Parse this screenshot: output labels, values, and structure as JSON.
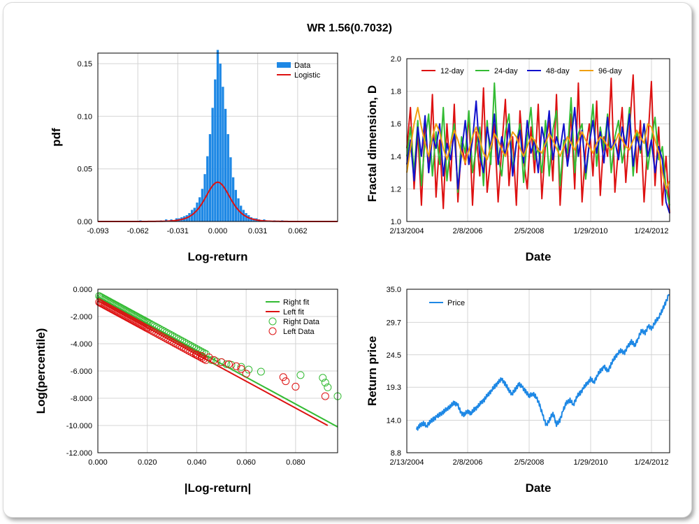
{
  "title": "WR 1.56(0.7032)",
  "chart_data": [
    {
      "id": "pdf",
      "type": "bar",
      "xlabel": "Log-return",
      "ylabel": "pdf",
      "xlim": [
        -0.093,
        0.093
      ],
      "ylim": [
        0,
        0.16
      ],
      "xticks": [
        -0.093,
        -0.062,
        -0.031,
        0.0,
        0.031,
        0.062
      ],
      "xtick_labels": [
        "-0.093",
        "-0.062",
        "-0.031",
        "0.000",
        "0.031",
        "0.062"
      ],
      "yticks": [
        0,
        0.05,
        0.1,
        0.15
      ],
      "ytick_labels": [
        "0.00",
        "0.05",
        "0.10",
        "0.15"
      ],
      "legend": [
        "Data",
        "Logistic"
      ],
      "legend_position": "top-right",
      "series_colors": {
        "Data": "#1e88e5",
        "Logistic": "#dd1111"
      },
      "bin_centers": [
        -0.06,
        -0.044,
        -0.04,
        -0.036,
        -0.032,
        -0.03,
        -0.028,
        -0.026,
        -0.024,
        -0.022,
        -0.02,
        -0.018,
        -0.016,
        -0.014,
        -0.012,
        -0.01,
        -0.008,
        -0.006,
        -0.004,
        -0.002,
        0.0,
        0.002,
        0.004,
        0.006,
        0.008,
        0.01,
        0.012,
        0.014,
        0.016,
        0.018,
        0.02,
        0.022,
        0.024,
        0.026,
        0.028,
        0.03,
        0.032,
        0.036,
        0.04,
        0.044,
        0.05
      ],
      "bin_values": [
        0.001,
        0.001,
        0.002,
        0.002,
        0.003,
        0.003,
        0.004,
        0.005,
        0.006,
        0.008,
        0.011,
        0.013,
        0.018,
        0.023,
        0.031,
        0.045,
        0.062,
        0.083,
        0.108,
        0.135,
        0.163,
        0.15,
        0.128,
        0.107,
        0.083,
        0.061,
        0.042,
        0.03,
        0.022,
        0.015,
        0.011,
        0.008,
        0.006,
        0.004,
        0.003,
        0.003,
        0.002,
        0.002,
        0.001,
        0.001,
        0.001
      ],
      "logistic_scale": 0.0065,
      "logistic_center": 0.0
    },
    {
      "id": "fractal",
      "type": "line",
      "xlabel": "Date",
      "ylabel": "Fractal dimension, D",
      "ylim": [
        1.0,
        2.0
      ],
      "yticks": [
        1.0,
        1.2,
        1.4,
        1.6,
        1.8,
        2.0
      ],
      "ytick_labels": [
        "1.0",
        "1.2",
        "1.4",
        "1.6",
        "1.8",
        "2.0"
      ],
      "xtick_labels": [
        "2/13/2004",
        "2/8/2006",
        "2/5/2008",
        "1/29/2010",
        "1/24/2012"
      ],
      "legend_position": "top",
      "series": [
        {
          "name": "12-day",
          "color": "#dd1111",
          "values": [
            1.45,
            1.7,
            1.2,
            1.55,
            1.1,
            1.62,
            1.3,
            1.78,
            1.15,
            1.5,
            1.08,
            1.6,
            1.25,
            1.72,
            1.12,
            1.48,
            1.35,
            1.66,
            1.1,
            1.55,
            1.28,
            1.82,
            1.18,
            1.4,
            1.6,
            1.12,
            1.45,
            1.75,
            1.22,
            1.52,
            1.1,
            1.68,
            1.38,
            1.2,
            1.58,
            1.3,
            1.72,
            1.14,
            1.48,
            1.62,
            1.25,
            1.78,
            1.1,
            1.5,
            1.36,
            1.66,
            1.2,
            1.85,
            1.12,
            1.44,
            1.6,
            1.28,
            1.74,
            1.16,
            1.52,
            1.4,
            1.88,
            1.18,
            1.46,
            1.7,
            1.24,
            1.56,
            1.9,
            1.3,
            1.62,
            1.12,
            1.48,
            1.86,
            1.22,
            1.58,
            1.1,
            1.4,
            1.05
          ]
        },
        {
          "name": "24-day",
          "color": "#33bb33",
          "values": [
            1.4,
            1.58,
            1.3,
            1.62,
            1.22,
            1.5,
            1.66,
            1.28,
            1.55,
            1.35,
            1.7,
            1.25,
            1.48,
            1.6,
            1.18,
            1.52,
            1.42,
            1.68,
            1.3,
            1.45,
            1.58,
            1.22,
            1.62,
            1.35,
            1.85,
            1.4,
            1.28,
            1.55,
            1.66,
            1.32,
            1.48,
            1.6,
            1.24,
            1.52,
            1.7,
            1.38,
            1.45,
            1.3,
            1.62,
            1.28,
            1.56,
            1.68,
            1.22,
            1.5,
            1.42,
            1.76,
            1.3,
            1.54,
            1.6,
            1.26,
            1.48,
            1.72,
            1.34,
            1.58,
            1.44,
            1.66,
            1.3,
            1.52,
            1.62,
            1.36,
            1.48,
            1.7,
            1.28,
            1.56,
            1.42,
            1.6,
            1.32,
            1.5,
            1.64,
            1.38,
            1.46,
            1.2,
            1.1
          ]
        },
        {
          "name": "48-day",
          "color": "#1111cc",
          "values": [
            1.35,
            1.5,
            1.25,
            1.58,
            1.4,
            1.65,
            1.3,
            1.52,
            1.45,
            1.6,
            1.28,
            1.48,
            1.38,
            1.55,
            1.2,
            1.42,
            1.62,
            1.35,
            1.5,
            1.74,
            1.4,
            1.3,
            1.58,
            1.45,
            1.66,
            1.35,
            1.52,
            1.4,
            1.6,
            1.28,
            1.48,
            1.56,
            1.36,
            1.62,
            1.42,
            1.5,
            1.3,
            1.58,
            1.46,
            1.68,
            1.38,
            1.52,
            1.44,
            1.6,
            1.34,
            1.5,
            1.7,
            1.4,
            1.56,
            1.3,
            1.48,
            1.62,
            1.42,
            1.55,
            1.36,
            1.64,
            1.44,
            1.5,
            1.38,
            1.58,
            1.46,
            1.66,
            1.34,
            1.52,
            1.44,
            1.6,
            1.4,
            1.5,
            1.3,
            1.46,
            1.38,
            1.12,
            1.05
          ]
        },
        {
          "name": "96-day",
          "color": "#f0a010",
          "values": [
            1.3,
            1.45,
            1.6,
            1.7,
            1.58,
            1.48,
            1.4,
            1.52,
            1.6,
            1.55,
            1.45,
            1.38,
            1.48,
            1.56,
            1.5,
            1.42,
            1.36,
            1.44,
            1.52,
            1.58,
            1.5,
            1.42,
            1.38,
            1.46,
            1.54,
            1.5,
            1.44,
            1.4,
            1.48,
            1.55,
            1.52,
            1.45,
            1.4,
            1.46,
            1.52,
            1.5,
            1.44,
            1.42,
            1.48,
            1.54,
            1.5,
            1.45,
            1.4,
            1.46,
            1.52,
            1.48,
            1.44,
            1.5,
            1.55,
            1.5,
            1.46,
            1.42,
            1.48,
            1.52,
            1.5,
            1.46,
            1.44,
            1.48,
            1.54,
            1.5,
            1.46,
            1.44,
            1.5,
            1.56,
            1.52,
            1.48,
            1.6,
            1.58,
            1.5,
            1.42,
            1.3,
            1.2,
            1.25
          ]
        }
      ]
    },
    {
      "id": "tail",
      "type": "scatter",
      "xlabel": "|Log-return|",
      "ylabel": "Log(percentile)",
      "xlim": [
        0.0,
        0.097
      ],
      "ylim": [
        -12.0,
        0.0
      ],
      "xticks": [
        0.0,
        0.02,
        0.04,
        0.06,
        0.08
      ],
      "xtick_labels": [
        "0.000",
        "0.020",
        "0.040",
        "0.060",
        "0.080"
      ],
      "yticks": [
        0,
        -2,
        -4,
        -6,
        -8,
        -10,
        -12
      ],
      "ytick_labels": [
        "0.000",
        "-2.000",
        "-4.000",
        "-6.000",
        "-8.000",
        "-10.000",
        "-12.000"
      ],
      "legend": [
        "Right fit",
        "Left fit",
        "Right Data",
        "Left Data"
      ],
      "legend_position": "top-right",
      "right_fit": {
        "color": "#33bb33",
        "x": [
          0.0,
          0.097
        ],
        "y": [
          -0.55,
          -10.1
        ]
      },
      "left_fit": {
        "color": "#dd1111",
        "x": [
          0.0,
          0.093
        ],
        "y": [
          -0.85,
          -10.0
        ]
      },
      "right_data": {
        "color": "#33bb33",
        "x": [
          0.046,
          0.048,
          0.05,
          0.052,
          0.054,
          0.058,
          0.061,
          0.066,
          0.082,
          0.091,
          0.092,
          0.093,
          0.097
        ],
        "y": [
          -5.2,
          -5.3,
          -5.35,
          -5.5,
          -5.55,
          -5.7,
          -5.9,
          -6.05,
          -6.3,
          -6.5,
          -6.85,
          -7.2,
          -7.85
        ]
      },
      "left_data": {
        "color": "#dd1111",
        "x": [
          0.04,
          0.042,
          0.045,
          0.047,
          0.05,
          0.053,
          0.056,
          0.058,
          0.06,
          0.075,
          0.076,
          0.08,
          0.092
        ],
        "y": [
          -4.8,
          -4.9,
          -5.0,
          -5.2,
          -5.35,
          -5.5,
          -5.65,
          -5.85,
          -6.2,
          -6.45,
          -6.75,
          -7.15,
          -7.85
        ]
      }
    },
    {
      "id": "price",
      "type": "line",
      "xlabel": "Date",
      "ylabel": "Return price",
      "ylim": [
        8.8,
        35.0
      ],
      "yticks": [
        8.8,
        14.0,
        19.3,
        24.5,
        29.7,
        35.0
      ],
      "ytick_labels": [
        "8.8",
        "14.0",
        "19.3",
        "24.5",
        "29.7",
        "35.0"
      ],
      "xtick_labels": [
        "2/13/2004",
        "2/8/2006",
        "2/5/2008",
        "1/29/2010",
        "1/24/2012"
      ],
      "legend": [
        "Price"
      ],
      "legend_position": "top-left",
      "series": [
        {
          "name": "Price",
          "color": "#1e88e5",
          "values": [
            12.5,
            13.2,
            13.5,
            13.1,
            13.8,
            14.2,
            14.6,
            15.0,
            15.4,
            15.9,
            16.3,
            16.8,
            16.5,
            15.2,
            14.9,
            15.5,
            15.1,
            15.8,
            16.2,
            16.9,
            17.4,
            18.2,
            18.8,
            19.5,
            20.1,
            20.6,
            19.8,
            18.9,
            18.2,
            19.0,
            19.8,
            19.3,
            18.6,
            17.9,
            18.3,
            17.8,
            16.6,
            14.8,
            13.2,
            14.1,
            15.2,
            13.3,
            14.0,
            15.6,
            16.9,
            17.2,
            16.5,
            17.8,
            18.4,
            19.2,
            19.9,
            20.6,
            20.1,
            21.2,
            22.0,
            22.6,
            21.8,
            22.9,
            24.0,
            24.7,
            25.2,
            24.8,
            25.9,
            26.6,
            26.0,
            27.2,
            28.4,
            28.0,
            29.1,
            28.7,
            29.8,
            30.5,
            31.6,
            32.8,
            34.2
          ]
        }
      ]
    }
  ]
}
